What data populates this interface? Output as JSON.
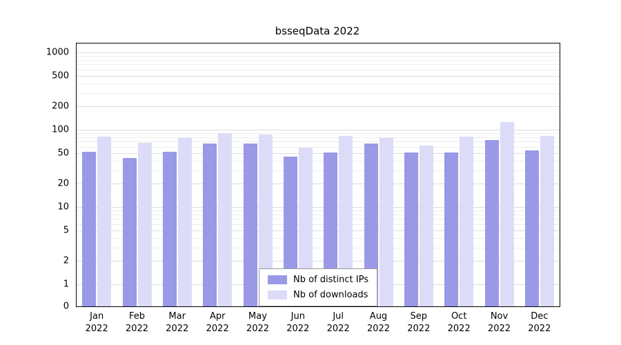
{
  "chart_data": {
    "type": "bar",
    "title": "bsseqData 2022",
    "categories": [
      "Jan",
      "Feb",
      "Mar",
      "Apr",
      "May",
      "Jun",
      "Jul",
      "Aug",
      "Sep",
      "Oct",
      "Nov",
      "Dec"
    ],
    "year_label": "2022",
    "series": [
      {
        "name": "Nb of distinct IPs",
        "color": "#9999e8",
        "values": [
          52,
          43,
          52,
          67,
          66,
          45,
          51,
          66,
          51,
          51,
          74,
          54
        ]
      },
      {
        "name": "Nb of downloads",
        "color": "#dcdcf8",
        "values": [
          82,
          68,
          78,
          91,
          86,
          59,
          84,
          79,
          63,
          81,
          126,
          83
        ]
      }
    ],
    "y_ticks": [
      0,
      1,
      2,
      5,
      10,
      20,
      50,
      100,
      200,
      500,
      1000
    ],
    "y_scale": "log (1–1000) with zero baseline",
    "grid": true,
    "legend_position": "bottom-center"
  }
}
